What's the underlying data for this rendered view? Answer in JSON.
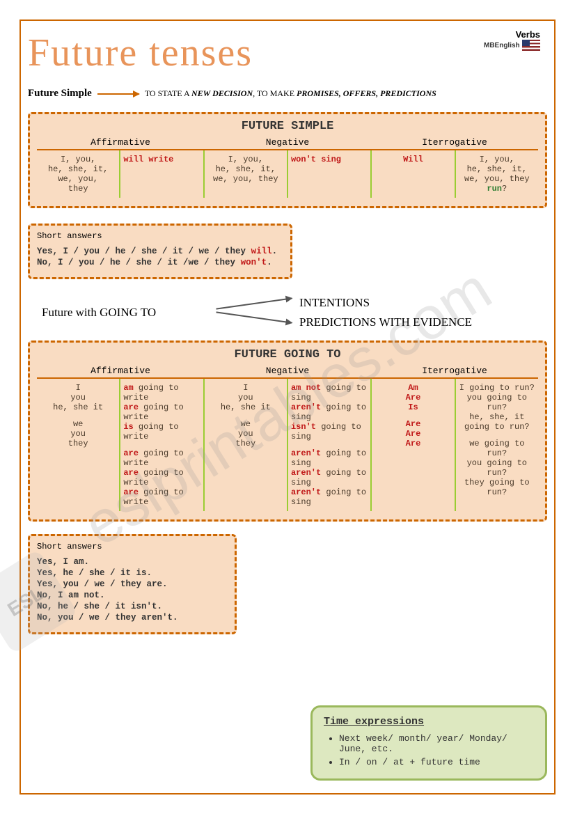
{
  "corner": {
    "verbs": "Verbs",
    "brand": "MBEnglish"
  },
  "title": "Future tenses",
  "futureSimpleLine": {
    "label": "Future Simple",
    "usage_prefix": "TO STATE A ",
    "usage_em1": "NEW DECISION",
    "usage_mid": ", TO MAKE ",
    "usage_em2": "PROMISES, OFFERS, PREDICTIONS"
  },
  "table1": {
    "title": "FUTURE SIMPLE",
    "headers": [
      "Affirmative",
      "Negative",
      "Iterrogative"
    ],
    "aff_subj": "I, you,\nhe, she, it,\nwe, you,\nthey",
    "aff_verb": "will write",
    "neg_subj": "I, you,\nhe, she, it,\nwe, you,  they",
    "neg_verb": "won't sing",
    "int_aux": "Will",
    "int_subj": "I, you,\nhe, she, it,\nwe, you,  they",
    "int_verb": "run",
    "int_q": "?"
  },
  "short1": {
    "title": "Short answers",
    "yes_pre": "Yes, I / you / he / she / it / we / they ",
    "yes_aux": "will",
    "no_pre": "No,  I / you / he / she / it /we / they ",
    "no_aux": "won't"
  },
  "goingTo": {
    "label": "Future with GOING TO",
    "r1": "INTENTIONS",
    "r2": "PREDICTIONS WITH EVIDENCE"
  },
  "table2": {
    "title": "FUTURE GOING TO",
    "headers": [
      "Affirmative",
      "Negative",
      "Iterrogative"
    ],
    "subj": [
      "I",
      "you",
      "he, she it",
      "we",
      "you",
      "they"
    ],
    "aff_aux": [
      "am",
      "are",
      "is",
      "are",
      "are",
      "are"
    ],
    "aff_rest": "going to write",
    "neg_aux": [
      "am not",
      "aren't",
      "isn't",
      "aren't",
      "aren't",
      "aren't"
    ],
    "neg_rest": "going to sing",
    "int_aux": [
      "Am",
      "Are",
      "Is",
      "Are",
      "Are",
      "Are"
    ],
    "int_subj": [
      "I going to run?",
      "you going to run?",
      "he, she, it going to run?",
      "we going to run?",
      "you  going to run?",
      "they going to run?"
    ]
  },
  "short2": {
    "title": "Short answers",
    "lines": [
      "Yes, I am.",
      "Yes, he / she / it is.",
      "Yes, you / we / they are.",
      "No, I am not.",
      "No, he / she / it isn't.",
      "No, you / we / they aren't."
    ]
  },
  "timebox": {
    "title": "Time expressions",
    "items": [
      "Next week/ month/ year/ Monday/ June, etc.",
      "In / on / at + future time"
    ]
  },
  "watermark": "eslprintables.com",
  "wm_badge": "ESL"
}
